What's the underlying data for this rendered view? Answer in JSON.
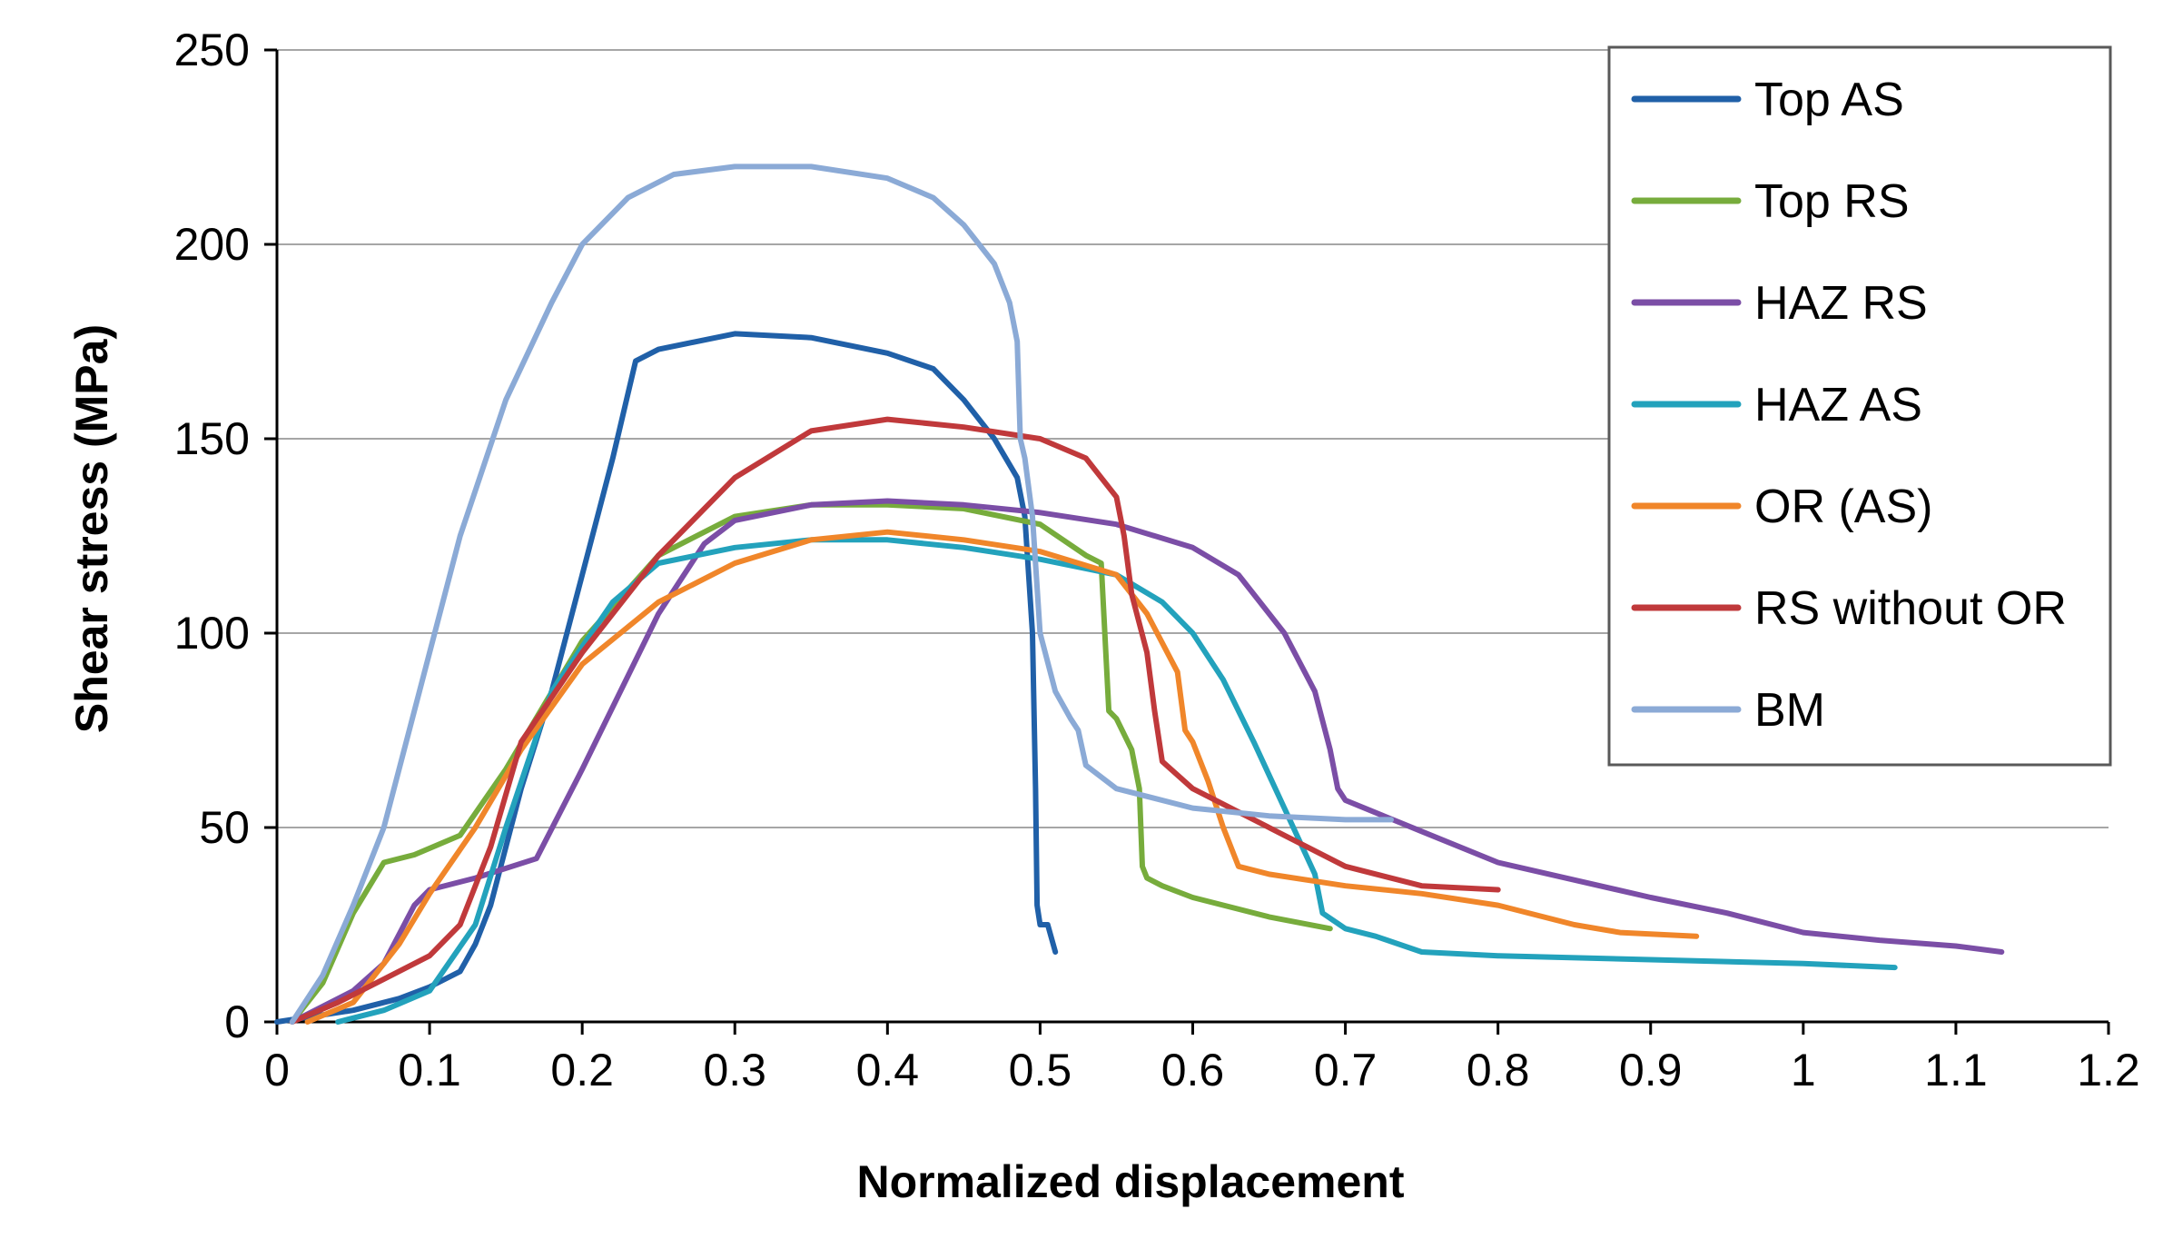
{
  "chart_data": {
    "type": "line",
    "title": "",
    "xlabel": "Normalized displacement",
    "ylabel": "Shear stress (MPa)",
    "xlim": [
      0,
      1.2
    ],
    "ylim": [
      0,
      250
    ],
    "xticks": [
      0,
      0.1,
      0.2,
      0.3,
      0.4,
      0.5,
      0.6,
      0.7,
      0.8,
      0.9,
      1,
      1.1,
      1.2
    ],
    "xtick_labels": [
      "0",
      "0.1",
      "0.2",
      "0.3",
      "0.4",
      "0.5",
      "0.6",
      "0.7",
      "0.8",
      "0.9",
      "1",
      "1.1",
      "1.2"
    ],
    "yticks": [
      0,
      50,
      100,
      150,
      200,
      250
    ],
    "ytick_labels": [
      "0",
      "50",
      "100",
      "150",
      "200",
      "250"
    ],
    "grid": "horizontal",
    "legend_position": "top-right",
    "series": [
      {
        "name": "Top AS",
        "color": "#2060A8",
        "points": [
          [
            0,
            0
          ],
          [
            0.05,
            3
          ],
          [
            0.08,
            6
          ],
          [
            0.1,
            9
          ],
          [
            0.12,
            13
          ],
          [
            0.13,
            20
          ],
          [
            0.14,
            30
          ],
          [
            0.15,
            45
          ],
          [
            0.16,
            60
          ],
          [
            0.18,
            85
          ],
          [
            0.2,
            115
          ],
          [
            0.22,
            145
          ],
          [
            0.235,
            170
          ],
          [
            0.25,
            173
          ],
          [
            0.3,
            177
          ],
          [
            0.35,
            176
          ],
          [
            0.4,
            172
          ],
          [
            0.43,
            168
          ],
          [
            0.45,
            160
          ],
          [
            0.47,
            150
          ],
          [
            0.485,
            140
          ],
          [
            0.49,
            130
          ],
          [
            0.495,
            100
          ],
          [
            0.497,
            60
          ],
          [
            0.498,
            30
          ],
          [
            0.5,
            25
          ],
          [
            0.505,
            25
          ],
          [
            0.51,
            18
          ]
        ]
      },
      {
        "name": "Top RS",
        "color": "#77AC3C",
        "points": [
          [
            0.01,
            0
          ],
          [
            0.03,
            10
          ],
          [
            0.05,
            28
          ],
          [
            0.07,
            41
          ],
          [
            0.09,
            43
          ],
          [
            0.12,
            48
          ],
          [
            0.15,
            65
          ],
          [
            0.2,
            98
          ],
          [
            0.25,
            120
          ],
          [
            0.3,
            130
          ],
          [
            0.35,
            133
          ],
          [
            0.4,
            133
          ],
          [
            0.45,
            132
          ],
          [
            0.5,
            128
          ],
          [
            0.53,
            120
          ],
          [
            0.54,
            118
          ],
          [
            0.545,
            80
          ],
          [
            0.55,
            78
          ],
          [
            0.56,
            70
          ],
          [
            0.565,
            60
          ],
          [
            0.567,
            40
          ],
          [
            0.57,
            37
          ],
          [
            0.58,
            35
          ],
          [
            0.6,
            32
          ],
          [
            0.65,
            27
          ],
          [
            0.69,
            24
          ]
        ]
      },
      {
        "name": "HAZ RS",
        "color": "#7B4EA6",
        "points": [
          [
            0.01,
            0
          ],
          [
            0.03,
            4
          ],
          [
            0.05,
            8
          ],
          [
            0.07,
            15
          ],
          [
            0.09,
            30
          ],
          [
            0.1,
            34
          ],
          [
            0.13,
            37
          ],
          [
            0.17,
            42
          ],
          [
            0.2,
            65
          ],
          [
            0.25,
            105
          ],
          [
            0.28,
            123
          ],
          [
            0.3,
            129
          ],
          [
            0.35,
            133
          ],
          [
            0.4,
            134
          ],
          [
            0.45,
            133
          ],
          [
            0.5,
            131
          ],
          [
            0.55,
            128
          ],
          [
            0.6,
            122
          ],
          [
            0.63,
            115
          ],
          [
            0.66,
            100
          ],
          [
            0.68,
            85
          ],
          [
            0.69,
            70
          ],
          [
            0.695,
            60
          ],
          [
            0.7,
            57
          ],
          [
            0.75,
            49
          ],
          [
            0.8,
            41
          ],
          [
            0.9,
            32
          ],
          [
            0.95,
            28
          ],
          [
            1,
            23
          ],
          [
            1.05,
            21
          ],
          [
            1.1,
            19.5
          ],
          [
            1.13,
            18
          ]
        ]
      },
      {
        "name": "HAZ AS",
        "color": "#23A2BC",
        "points": [
          [
            0.04,
            0
          ],
          [
            0.07,
            3
          ],
          [
            0.1,
            8
          ],
          [
            0.13,
            25
          ],
          [
            0.15,
            50
          ],
          [
            0.18,
            85
          ],
          [
            0.22,
            108
          ],
          [
            0.25,
            118
          ],
          [
            0.3,
            122
          ],
          [
            0.35,
            124
          ],
          [
            0.4,
            124
          ],
          [
            0.45,
            122
          ],
          [
            0.5,
            119
          ],
          [
            0.55,
            115
          ],
          [
            0.58,
            108
          ],
          [
            0.6,
            100
          ],
          [
            0.62,
            88
          ],
          [
            0.64,
            72
          ],
          [
            0.66,
            55
          ],
          [
            0.68,
            38
          ],
          [
            0.685,
            28
          ],
          [
            0.7,
            24
          ],
          [
            0.72,
            22
          ],
          [
            0.75,
            18
          ],
          [
            0.8,
            17
          ],
          [
            0.9,
            16
          ],
          [
            1,
            15
          ],
          [
            1.06,
            14
          ]
        ]
      },
      {
        "name": "OR (AS)",
        "color": "#F0862A",
        "points": [
          [
            0.02,
            0
          ],
          [
            0.05,
            5
          ],
          [
            0.08,
            20
          ],
          [
            0.1,
            33
          ],
          [
            0.13,
            50
          ],
          [
            0.16,
            70
          ],
          [
            0.2,
            92
          ],
          [
            0.25,
            108
          ],
          [
            0.3,
            118
          ],
          [
            0.35,
            124
          ],
          [
            0.4,
            126
          ],
          [
            0.45,
            124
          ],
          [
            0.5,
            121
          ],
          [
            0.55,
            115
          ],
          [
            0.57,
            105
          ],
          [
            0.59,
            90
          ],
          [
            0.595,
            75
          ],
          [
            0.6,
            72
          ],
          [
            0.61,
            62
          ],
          [
            0.62,
            50
          ],
          [
            0.63,
            40
          ],
          [
            0.65,
            38
          ],
          [
            0.7,
            35
          ],
          [
            0.75,
            33
          ],
          [
            0.8,
            30
          ],
          [
            0.85,
            25
          ],
          [
            0.88,
            23
          ],
          [
            0.93,
            22
          ]
        ]
      },
      {
        "name": "RS without OR",
        "color": "#C0393B",
        "points": [
          [
            0.01,
            0
          ],
          [
            0.04,
            5
          ],
          [
            0.07,
            11
          ],
          [
            0.1,
            17
          ],
          [
            0.12,
            25
          ],
          [
            0.14,
            45
          ],
          [
            0.16,
            72
          ],
          [
            0.2,
            95
          ],
          [
            0.25,
            120
          ],
          [
            0.3,
            140
          ],
          [
            0.35,
            152
          ],
          [
            0.4,
            155
          ],
          [
            0.45,
            153
          ],
          [
            0.5,
            150
          ],
          [
            0.53,
            145
          ],
          [
            0.55,
            135
          ],
          [
            0.555,
            125
          ],
          [
            0.56,
            110
          ],
          [
            0.57,
            95
          ],
          [
            0.575,
            80
          ],
          [
            0.58,
            67
          ],
          [
            0.6,
            60
          ],
          [
            0.65,
            50
          ],
          [
            0.7,
            40
          ],
          [
            0.75,
            35
          ],
          [
            0.8,
            34
          ]
        ]
      },
      {
        "name": "BM",
        "color": "#8BAAD6",
        "points": [
          [
            0.01,
            0
          ],
          [
            0.03,
            12
          ],
          [
            0.05,
            30
          ],
          [
            0.07,
            50
          ],
          [
            0.1,
            95
          ],
          [
            0.12,
            125
          ],
          [
            0.15,
            160
          ],
          [
            0.18,
            185
          ],
          [
            0.2,
            200
          ],
          [
            0.23,
            212
          ],
          [
            0.26,
            218
          ],
          [
            0.3,
            220
          ],
          [
            0.35,
            220
          ],
          [
            0.4,
            217
          ],
          [
            0.43,
            212
          ],
          [
            0.45,
            205
          ],
          [
            0.47,
            195
          ],
          [
            0.48,
            185
          ],
          [
            0.485,
            175
          ],
          [
            0.487,
            150
          ],
          [
            0.49,
            145
          ],
          [
            0.495,
            130
          ],
          [
            0.5,
            100
          ],
          [
            0.51,
            85
          ],
          [
            0.52,
            78
          ],
          [
            0.525,
            75
          ],
          [
            0.53,
            66
          ],
          [
            0.55,
            60
          ],
          [
            0.6,
            55
          ],
          [
            0.65,
            53
          ],
          [
            0.7,
            52
          ],
          [
            0.73,
            52
          ]
        ]
      }
    ]
  }
}
